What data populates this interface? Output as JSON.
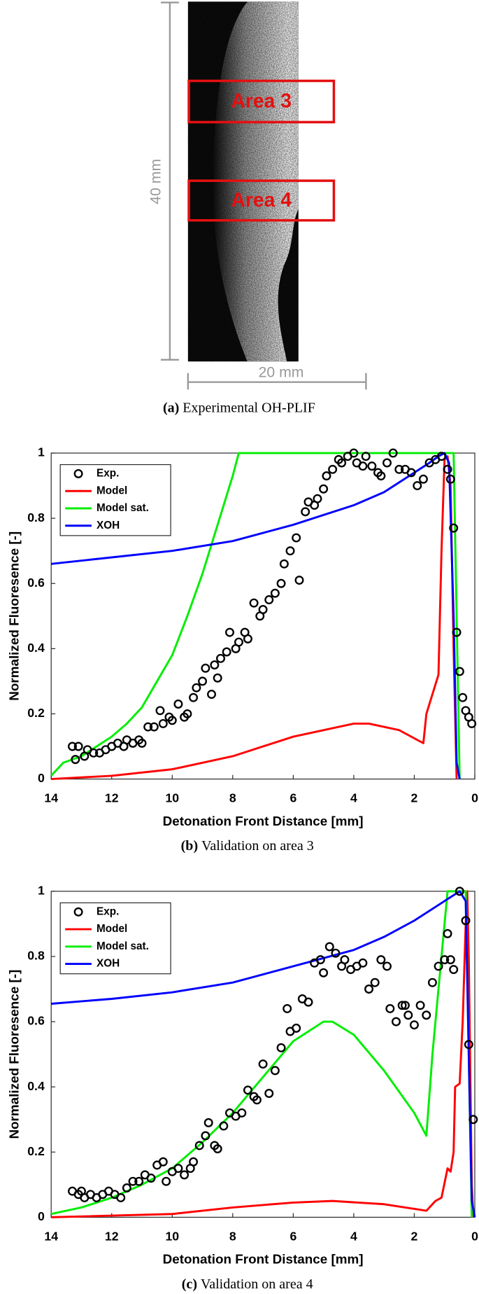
{
  "image_panel": {
    "areas": [
      "Area 3",
      "Area 4"
    ],
    "height_label": "40 mm",
    "width_label": "20 mm",
    "caption_label": "(a)",
    "caption": "Experimental OH-PLIF"
  },
  "chart_data": [
    {
      "type": "line",
      "caption_label": "(b)",
      "caption": "Validation on area 3",
      "x_label": "Detonation Front Distance [mm]",
      "y_label": "Normalized Fluoresence [-]",
      "xlim": [
        14,
        0
      ],
      "xticks": [
        14,
        12,
        10,
        8,
        6,
        4,
        2,
        0
      ],
      "ylim": [
        0,
        1
      ],
      "yticks": [
        0,
        0.2,
        0.4,
        0.6,
        0.8,
        1
      ],
      "legend": "upper left",
      "series": [
        {
          "name": "Exp.",
          "color": "#000000",
          "marker": "o",
          "x": [
            13.3,
            13.1,
            13.2,
            12.9,
            12.8,
            12.6,
            12.4,
            12.2,
            12.0,
            11.8,
            11.6,
            11.5,
            11.3,
            11.1,
            11.0,
            10.8,
            10.6,
            10.4,
            10.3,
            10.1,
            10.0,
            9.8,
            9.6,
            9.5,
            9.3,
            9.2,
            9.0,
            8.9,
            8.7,
            8.6,
            8.5,
            8.4,
            8.2,
            8.1,
            7.9,
            7.8,
            7.6,
            7.5,
            7.3,
            7.1,
            7.0,
            6.8,
            6.6,
            6.4,
            6.3,
            6.1,
            5.9,
            5.8,
            5.6,
            5.5,
            5.3,
            5.2,
            5.0,
            4.9,
            4.7,
            4.5,
            4.4,
            4.2,
            4.0,
            3.9,
            3.7,
            3.6,
            3.4,
            3.2,
            3.1,
            2.9,
            2.7,
            2.5,
            2.3,
            2.1,
            1.9,
            1.7,
            1.5,
            1.3,
            1.1,
            0.9,
            0.8,
            0.7,
            0.6,
            0.5,
            0.4,
            0.3,
            0.2,
            0.1
          ],
          "values": [
            0.1,
            0.1,
            0.06,
            0.07,
            0.09,
            0.08,
            0.08,
            0.09,
            0.1,
            0.11,
            0.1,
            0.12,
            0.11,
            0.12,
            0.11,
            0.16,
            0.16,
            0.21,
            0.17,
            0.19,
            0.18,
            0.23,
            0.19,
            0.2,
            0.25,
            0.28,
            0.3,
            0.34,
            0.26,
            0.35,
            0.31,
            0.37,
            0.39,
            0.45,
            0.4,
            0.42,
            0.45,
            0.43,
            0.54,
            0.5,
            0.52,
            0.55,
            0.57,
            0.6,
            0.66,
            0.7,
            0.74,
            0.61,
            0.82,
            0.85,
            0.84,
            0.86,
            0.89,
            0.93,
            0.95,
            0.98,
            0.97,
            0.99,
            1.0,
            0.97,
            0.96,
            0.99,
            0.96,
            0.94,
            0.93,
            0.97,
            1.0,
            0.95,
            0.95,
            0.94,
            0.9,
            0.92,
            0.97,
            0.98,
            0.99,
            0.95,
            0.92,
            0.77,
            0.45,
            0.33,
            0.25,
            0.21,
            0.19,
            0.17
          ]
        },
        {
          "name": "Model",
          "color": "#ff0000",
          "x": [
            14,
            12,
            10,
            8,
            6,
            4,
            3.5,
            2.5,
            1.7,
            1.6,
            1.2,
            1.1,
            1.0,
            0.9,
            0.8,
            0.7,
            0.6
          ],
          "values": [
            0,
            0.01,
            0.03,
            0.07,
            0.13,
            0.17,
            0.17,
            0.15,
            0.11,
            0.2,
            0.32,
            0.7,
            0.98,
            0.99,
            0.9,
            0.4,
            0
          ]
        },
        {
          "name": "Model sat.",
          "color": "#00ee00",
          "x": [
            14,
            13.6,
            13,
            12.5,
            12,
            11.5,
            11,
            10.5,
            10,
            9.5,
            9,
            8.5,
            8,
            7.8,
            0.7,
            0.6,
            0.5
          ],
          "values": [
            0.01,
            0.05,
            0.07,
            0.1,
            0.13,
            0.17,
            0.22,
            0.3,
            0.38,
            0.5,
            0.63,
            0.78,
            0.93,
            1,
            1,
            0.5,
            0
          ]
        },
        {
          "name": "XOH",
          "color": "#0000ff",
          "x": [
            14,
            12,
            10,
            8,
            6,
            4,
            3,
            2,
            1.5,
            1.2,
            1.0,
            0.85,
            0.7,
            0.6,
            0.5
          ],
          "values": [
            0.66,
            0.68,
            0.7,
            0.73,
            0.78,
            0.84,
            0.88,
            0.94,
            0.97,
            0.99,
            1,
            0.97,
            0.5,
            0.05,
            0
          ]
        }
      ]
    },
    {
      "type": "line",
      "caption_label": "(c)",
      "caption": "Validation on area 4",
      "x_label": "Detonation Front Distance [mm]",
      "y_label": "Normalized Fluoresence [-]",
      "xlim": [
        14,
        0
      ],
      "xticks": [
        14,
        12,
        10,
        8,
        6,
        4,
        2,
        0
      ],
      "ylim": [
        0,
        1
      ],
      "yticks": [
        0,
        0.2,
        0.4,
        0.6,
        0.8,
        1
      ],
      "legend": "upper left",
      "series": [
        {
          "name": "Exp.",
          "color": "#000000",
          "marker": "o",
          "x": [
            13.3,
            13.1,
            13.0,
            12.9,
            12.7,
            12.5,
            12.3,
            12.1,
            11.9,
            11.7,
            11.5,
            11.3,
            11.1,
            10.9,
            10.7,
            10.5,
            10.3,
            10.2,
            10.0,
            9.8,
            9.6,
            9.4,
            9.3,
            9.1,
            8.9,
            8.8,
            8.6,
            8.5,
            8.3,
            8.1,
            7.9,
            7.7,
            7.5,
            7.3,
            7.2,
            7.0,
            6.8,
            6.6,
            6.4,
            6.2,
            6.1,
            5.9,
            5.7,
            5.5,
            5.3,
            5.1,
            5.0,
            4.8,
            4.6,
            4.4,
            4.3,
            4.1,
            3.9,
            3.7,
            3.5,
            3.3,
            3.1,
            2.9,
            2.8,
            2.6,
            2.4,
            2.3,
            2.2,
            2.0,
            1.8,
            1.6,
            1.4,
            1.2,
            1.0,
            0.9,
            0.8,
            0.7,
            0.5,
            0.3,
            0.2,
            0.05
          ],
          "values": [
            0.08,
            0.07,
            0.08,
            0.06,
            0.07,
            0.06,
            0.07,
            0.08,
            0.07,
            0.06,
            0.09,
            0.11,
            0.11,
            0.13,
            0.12,
            0.16,
            0.17,
            0.11,
            0.14,
            0.15,
            0.13,
            0.15,
            0.17,
            0.22,
            0.25,
            0.29,
            0.22,
            0.21,
            0.28,
            0.32,
            0.31,
            0.32,
            0.39,
            0.37,
            0.36,
            0.47,
            0.38,
            0.45,
            0.52,
            0.64,
            0.57,
            0.58,
            0.67,
            0.66,
            0.78,
            0.79,
            0.75,
            0.83,
            0.81,
            0.77,
            0.79,
            0.76,
            0.77,
            0.78,
            0.7,
            0.72,
            0.79,
            0.77,
            0.64,
            0.6,
            0.65,
            0.65,
            0.62,
            0.59,
            0.65,
            0.62,
            0.72,
            0.77,
            0.79,
            0.87,
            0.79,
            0.76,
            1.0,
            0.91,
            0.53,
            0.3
          ]
        },
        {
          "name": "Model",
          "color": "#ff0000",
          "x": [
            14,
            10,
            8,
            6,
            4.7,
            3,
            1.6,
            1.3,
            1.1,
            0.9,
            0.8,
            0.7,
            0.65,
            0.5,
            0.4,
            0.3,
            0.25,
            0.2,
            0.1,
            0.05
          ],
          "values": [
            0,
            0.01,
            0.03,
            0.045,
            0.05,
            0.04,
            0.02,
            0.05,
            0.06,
            0.15,
            0.14,
            0.2,
            0.4,
            0.41,
            0.6,
            0.9,
            1,
            0.8,
            0.1,
            0
          ]
        },
        {
          "name": "Model sat.",
          "color": "#00ee00",
          "x": [
            14,
            13,
            12,
            11,
            10,
            9,
            8,
            7,
            6,
            5,
            4.7,
            4,
            3,
            2,
            1.6,
            1.4,
            1.2,
            0.9,
            0.3,
            0.2,
            0.1
          ],
          "values": [
            0.01,
            0.03,
            0.06,
            0.1,
            0.15,
            0.23,
            0.32,
            0.43,
            0.54,
            0.6,
            0.6,
            0.56,
            0.45,
            0.32,
            0.25,
            0.5,
            0.7,
            1,
            1,
            0.5,
            0
          ]
        },
        {
          "name": "XOH",
          "color": "#0000ff",
          "x": [
            14,
            12,
            10,
            8,
            6,
            4,
            3,
            2,
            1,
            0.5,
            0.3,
            0.2,
            0.1,
            0
          ],
          "values": [
            0.655,
            0.67,
            0.69,
            0.72,
            0.77,
            0.82,
            0.86,
            0.91,
            0.97,
            1,
            0.97,
            0.5,
            0.05,
            0
          ]
        }
      ]
    }
  ]
}
